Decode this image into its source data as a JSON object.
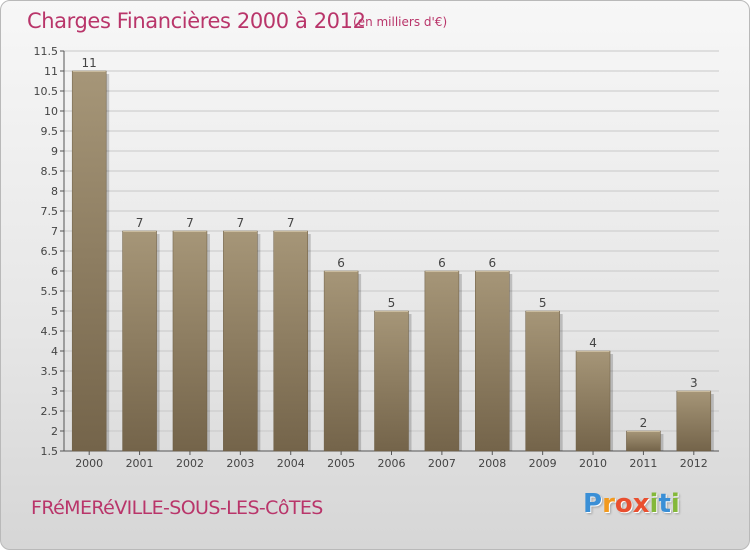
{
  "header": {
    "title": "Charges Financières 2000 à 2012",
    "subtitle": "(en milliers d'€)"
  },
  "footer": {
    "commune": "FRéMERéVILLE-SOUS-LES-CôTES",
    "logo_letters": [
      "P",
      "r",
      "o",
      "x",
      "i",
      "t",
      "i"
    ],
    "logo_colors": [
      "#3a8fd6",
      "#f29a1e",
      "#e94f2f",
      "#e94f2f",
      "#84b83a",
      "#3a8fd6",
      "#84b83a"
    ]
  },
  "colors": {
    "title": "#b9356a",
    "bar_dark": "#74644a",
    "bar_light": "#a69678",
    "grid": "#c8c8c8"
  },
  "chart_data": {
    "type": "bar",
    "title": "Charges Financières 2000 à 2012",
    "subtitle": "(en milliers d'€)",
    "categories": [
      "2000",
      "2001",
      "2002",
      "2003",
      "2004",
      "2005",
      "2006",
      "2007",
      "2008",
      "2009",
      "2010",
      "2011",
      "2012"
    ],
    "values": [
      11,
      7,
      7,
      7,
      7,
      6,
      5,
      6,
      6,
      5,
      4,
      2,
      3
    ],
    "data_labels": [
      "11",
      "7",
      "7",
      "7",
      "7",
      "6",
      "5",
      "6",
      "6",
      "5",
      "4",
      "2",
      "3"
    ],
    "ylim": [
      1.5,
      11.5
    ],
    "yticks": [
      "1.5",
      "2",
      "2.5",
      "3",
      "3.5",
      "4",
      "4.5",
      "5",
      "5.5",
      "6",
      "6.5",
      "7",
      "7.5",
      "8",
      "8.5",
      "9",
      "9.5",
      "10",
      "10.5",
      "11",
      "11.5"
    ],
    "grid": true,
    "legend": "none"
  }
}
